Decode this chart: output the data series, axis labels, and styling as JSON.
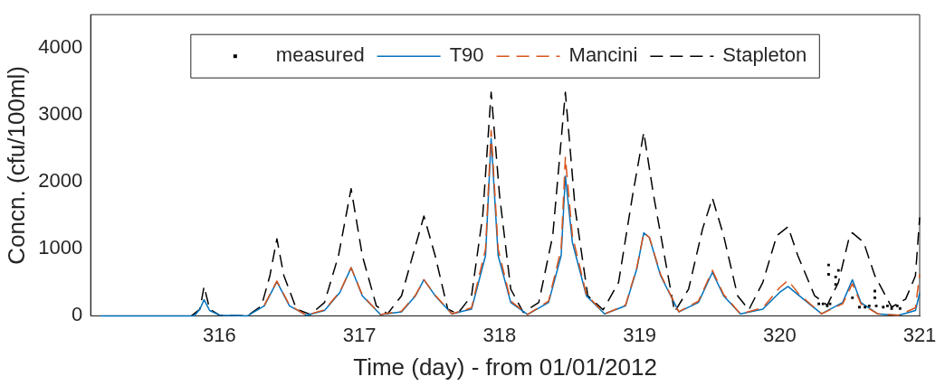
{
  "chart_data": {
    "type": "line",
    "xlabel": "Time (day) - from 01/01/2012",
    "ylabel": "Concn. (cfu/100ml)",
    "xlim": [
      315.08,
      321
    ],
    "xticks": [
      316,
      317,
      318,
      319,
      320,
      321
    ],
    "ylim": [
      0,
      4500
    ],
    "yticks": [
      0,
      1000,
      2000,
      3000,
      4000
    ],
    "grid": false,
    "legend": "top",
    "series": [
      {
        "name": "measured",
        "type": "scatter",
        "marker": "square",
        "color": "#000000",
        "x": [
          320.28,
          320.31,
          320.34,
          320.35,
          320.35,
          320.36,
          320.4,
          320.4,
          320.42,
          320.52,
          320.57,
          320.61,
          320.64,
          320.68,
          320.68,
          320.69,
          320.74,
          320.77,
          320.8,
          320.84,
          320.86
        ],
        "values": [
          180,
          180,
          150,
          760,
          620,
          180,
          580,
          470,
          680,
          270,
          130,
          130,
          150,
          370,
          270,
          150,
          130,
          150,
          110,
          150,
          110
        ]
      },
      {
        "name": "T90",
        "color": "#0072bd",
        "line_style": "solid",
        "x": [
          315.15,
          315.82,
          315.86,
          315.89,
          315.93,
          316.0,
          316.2,
          316.32,
          316.41,
          316.5,
          316.62,
          316.75,
          316.86,
          316.94,
          317.02,
          317.15,
          317.3,
          317.4,
          317.46,
          317.54,
          317.66,
          317.8,
          317.9,
          317.94,
          317.99,
          318.08,
          318.2,
          318.35,
          318.44,
          318.47,
          318.52,
          318.62,
          318.75,
          318.9,
          318.98,
          319.03,
          319.07,
          319.15,
          319.28,
          319.42,
          319.52,
          319.6,
          319.72,
          319.88,
          320.0,
          320.06,
          320.14,
          320.3,
          320.45,
          320.52,
          320.58,
          320.7,
          320.85,
          320.97,
          321
        ],
        "values": [
          0,
          0,
          100,
          240,
          80,
          10,
          0,
          150,
          510,
          150,
          10,
          80,
          350,
          720,
          300,
          20,
          60,
          300,
          540,
          300,
          30,
          100,
          900,
          2650,
          900,
          200,
          20,
          200,
          900,
          2090,
          1100,
          300,
          30,
          150,
          700,
          1240,
          1170,
          600,
          60,
          200,
          650,
          300,
          30,
          100,
          350,
          440,
          300,
          30,
          200,
          540,
          200,
          30,
          10,
          80,
          340
        ]
      },
      {
        "name": "Mancini",
        "color": "#d95319",
        "line_style": "dashed",
        "x": [
          316.32,
          316.41,
          316.5,
          316.62,
          316.75,
          316.86,
          316.94,
          317.02,
          317.15,
          317.3,
          317.4,
          317.46,
          317.54,
          317.66,
          317.8,
          317.9,
          317.94,
          317.99,
          318.08,
          318.2,
          318.35,
          318.44,
          318.47,
          318.52,
          318.62,
          318.75,
          318.9,
          318.98,
          319.03,
          319.07,
          319.15,
          319.28,
          319.42,
          319.52,
          319.6,
          319.72,
          319.88,
          320.0,
          320.06,
          320.14,
          320.3,
          320.45,
          320.52,
          320.58,
          320.7,
          320.85,
          320.97,
          321
        ],
        "values": [
          160,
          520,
          160,
          10,
          90,
          360,
          720,
          310,
          20,
          70,
          310,
          540,
          310,
          30,
          120,
          1000,
          2770,
          1000,
          220,
          20,
          220,
          1000,
          2370,
          1200,
          320,
          30,
          160,
          720,
          1240,
          1170,
          620,
          60,
          220,
          680,
          320,
          30,
          120,
          420,
          530,
          320,
          30,
          180,
          480,
          180,
          30,
          10,
          120,
          620
        ]
      },
      {
        "name": "Stapleton",
        "color": "#000000",
        "line_style": "dashed",
        "x": [
          315.8,
          315.86,
          315.89,
          315.93,
          316.0,
          316.2,
          316.3,
          316.36,
          316.41,
          316.46,
          316.55,
          316.65,
          316.75,
          316.85,
          316.94,
          317.02,
          317.12,
          317.2,
          317.3,
          317.38,
          317.46,
          317.54,
          317.63,
          317.7,
          317.8,
          317.88,
          317.94,
          318.0,
          318.08,
          318.17,
          318.28,
          318.38,
          318.47,
          318.54,
          318.63,
          318.74,
          318.85,
          318.95,
          319.03,
          319.1,
          319.25,
          319.35,
          319.45,
          319.52,
          319.6,
          319.7,
          319.78,
          319.88,
          319.98,
          320.06,
          320.13,
          320.25,
          320.34,
          320.42,
          320.5,
          320.52,
          320.6,
          320.68,
          320.8,
          320.9,
          320.97,
          321
        ],
        "values": [
          0,
          100,
          440,
          100,
          10,
          0,
          150,
          600,
          1150,
          600,
          100,
          20,
          200,
          900,
          1900,
          900,
          150,
          30,
          300,
          900,
          1490,
          900,
          100,
          30,
          300,
          1500,
          3340,
          1800,
          400,
          50,
          200,
          1200,
          3340,
          1600,
          300,
          90,
          500,
          1800,
          2740,
          1800,
          60,
          400,
          1300,
          1760,
          1200,
          300,
          90,
          500,
          1200,
          1330,
          900,
          300,
          160,
          500,
          1200,
          1240,
          1100,
          600,
          130,
          250,
          600,
          1470
        ]
      }
    ]
  }
}
